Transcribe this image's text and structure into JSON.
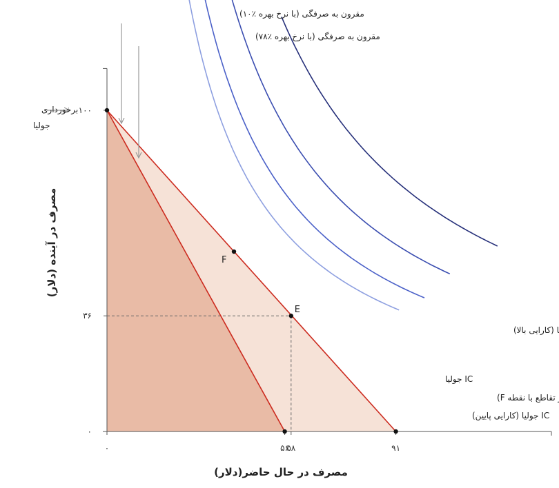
{
  "chart_data": {
    "type": "line",
    "xlabel": "مصرف در حال حاضر(دلار)",
    "ylabel": "مصرف در آینده (دلار)",
    "xlim": [
      0,
      140
    ],
    "ylim": [
      0,
      113
    ],
    "x_ticks": [
      {
        "value": 0,
        "label": "۰"
      },
      {
        "value": 56,
        "label": "۵۶"
      },
      {
        "value": 58,
        "label": "۵۸"
      },
      {
        "value": 91,
        "label": "۹۱"
      }
    ],
    "y_ticks": [
      {
        "value": 0,
        "label": "۰"
      },
      {
        "value": 36,
        "label": "۳۶"
      },
      {
        "value": 100,
        "label": "۱۰۰"
      }
    ],
    "endowment": {
      "x": 0,
      "y": 100,
      "label_line1": "برخورداری",
      "label_line2": "جولیا"
    },
    "budget_lines": [
      {
        "name": "مقرون به صرفگی (با نرخ بهره ٪۷۸)",
        "x_intercept": 56,
        "y_intercept": 100,
        "color": "#cc2a1e",
        "fill": "#e9bba6"
      },
      {
        "name": "مقرون به صرفگی (با نرخ بهره ٪۱۰)",
        "x_intercept": 91,
        "y_intercept": 100,
        "color": "#cc2a1e",
        "fill": "#f6e2d7"
      }
    ],
    "points": [
      {
        "label": "F",
        "x": 40,
        "y": 56
      },
      {
        "label": "E",
        "x": 58,
        "y": 36
      }
    ],
    "indifference_curves": [
      {
        "name": "IC جولیا (کارایی بالا)",
        "k": 7100,
        "x_range": [
          55,
          123
        ],
        "color": "#26307a"
      },
      {
        "name": "IC جولیا",
        "k": 5300,
        "x_range": [
          37,
          108
        ],
        "color": "#3a4db0"
      },
      {
        "name": "IC جولیا (در تقاطع با نقطه F)",
        "k": 4160,
        "x_range": [
          30,
          100
        ],
        "color": "#4a60c8"
      },
      {
        "name": "IC جولیا (کارایی پایین)",
        "k": 3480,
        "x_range": [
          21,
          92
        ],
        "color": "#8d9fe0"
      }
    ]
  }
}
